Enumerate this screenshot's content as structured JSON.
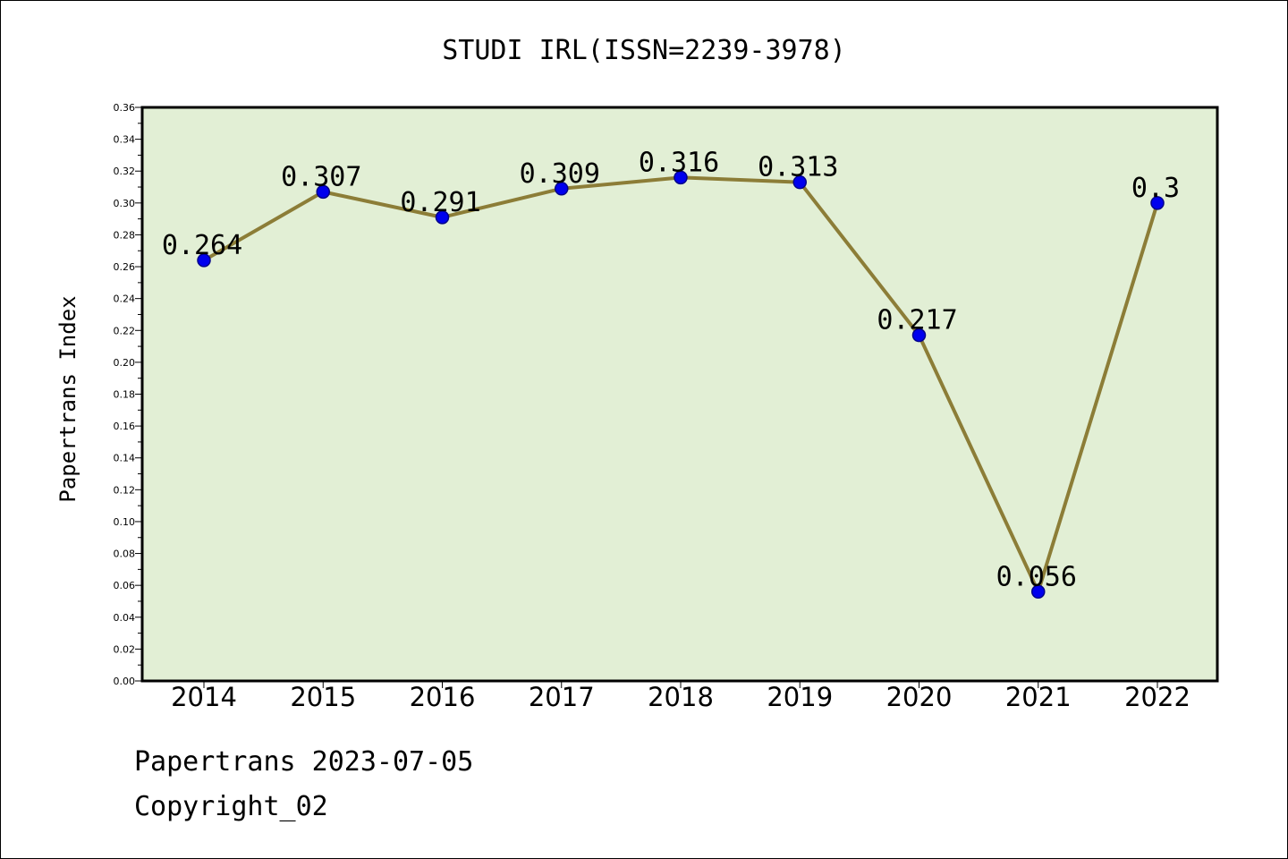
{
  "chart_data": {
    "type": "line",
    "title": "STUDI IRL(ISSN=2239-3978)",
    "ylabel": "Papertrans Index",
    "xlabel": "",
    "categories": [
      "2014",
      "2015",
      "2016",
      "2017",
      "2018",
      "2019",
      "2020",
      "2021",
      "2022"
    ],
    "series": [
      {
        "values": [
          0.264,
          0.307,
          0.291,
          0.309,
          0.316,
          0.313,
          0.217,
          0.056,
          0.3
        ],
        "data_labels": [
          "0.264",
          "0.307",
          "0.291",
          "0.309",
          "0.316",
          "0.313",
          "0.217",
          "0.056",
          "0.3"
        ]
      }
    ],
    "ylim": [
      0,
      0.36
    ],
    "yticks": [
      "0.00",
      "0.02",
      "0.04",
      "0.06",
      "0.08",
      "0.10",
      "0.12",
      "0.14",
      "0.16",
      "0.18",
      "0.20",
      "0.22",
      "0.24",
      "0.26",
      "0.28",
      "0.30",
      "0.32",
      "0.34",
      "0.36"
    ],
    "grid": false,
    "legend": "none",
    "colors": {
      "plot_background": "#e2efd5",
      "line": "#8c7d37",
      "marker": "#0000ee",
      "marker_edge": "#00008b"
    }
  },
  "footer": {
    "line1": "Papertrans 2023-07-05",
    "line2": "Copyright_02"
  }
}
